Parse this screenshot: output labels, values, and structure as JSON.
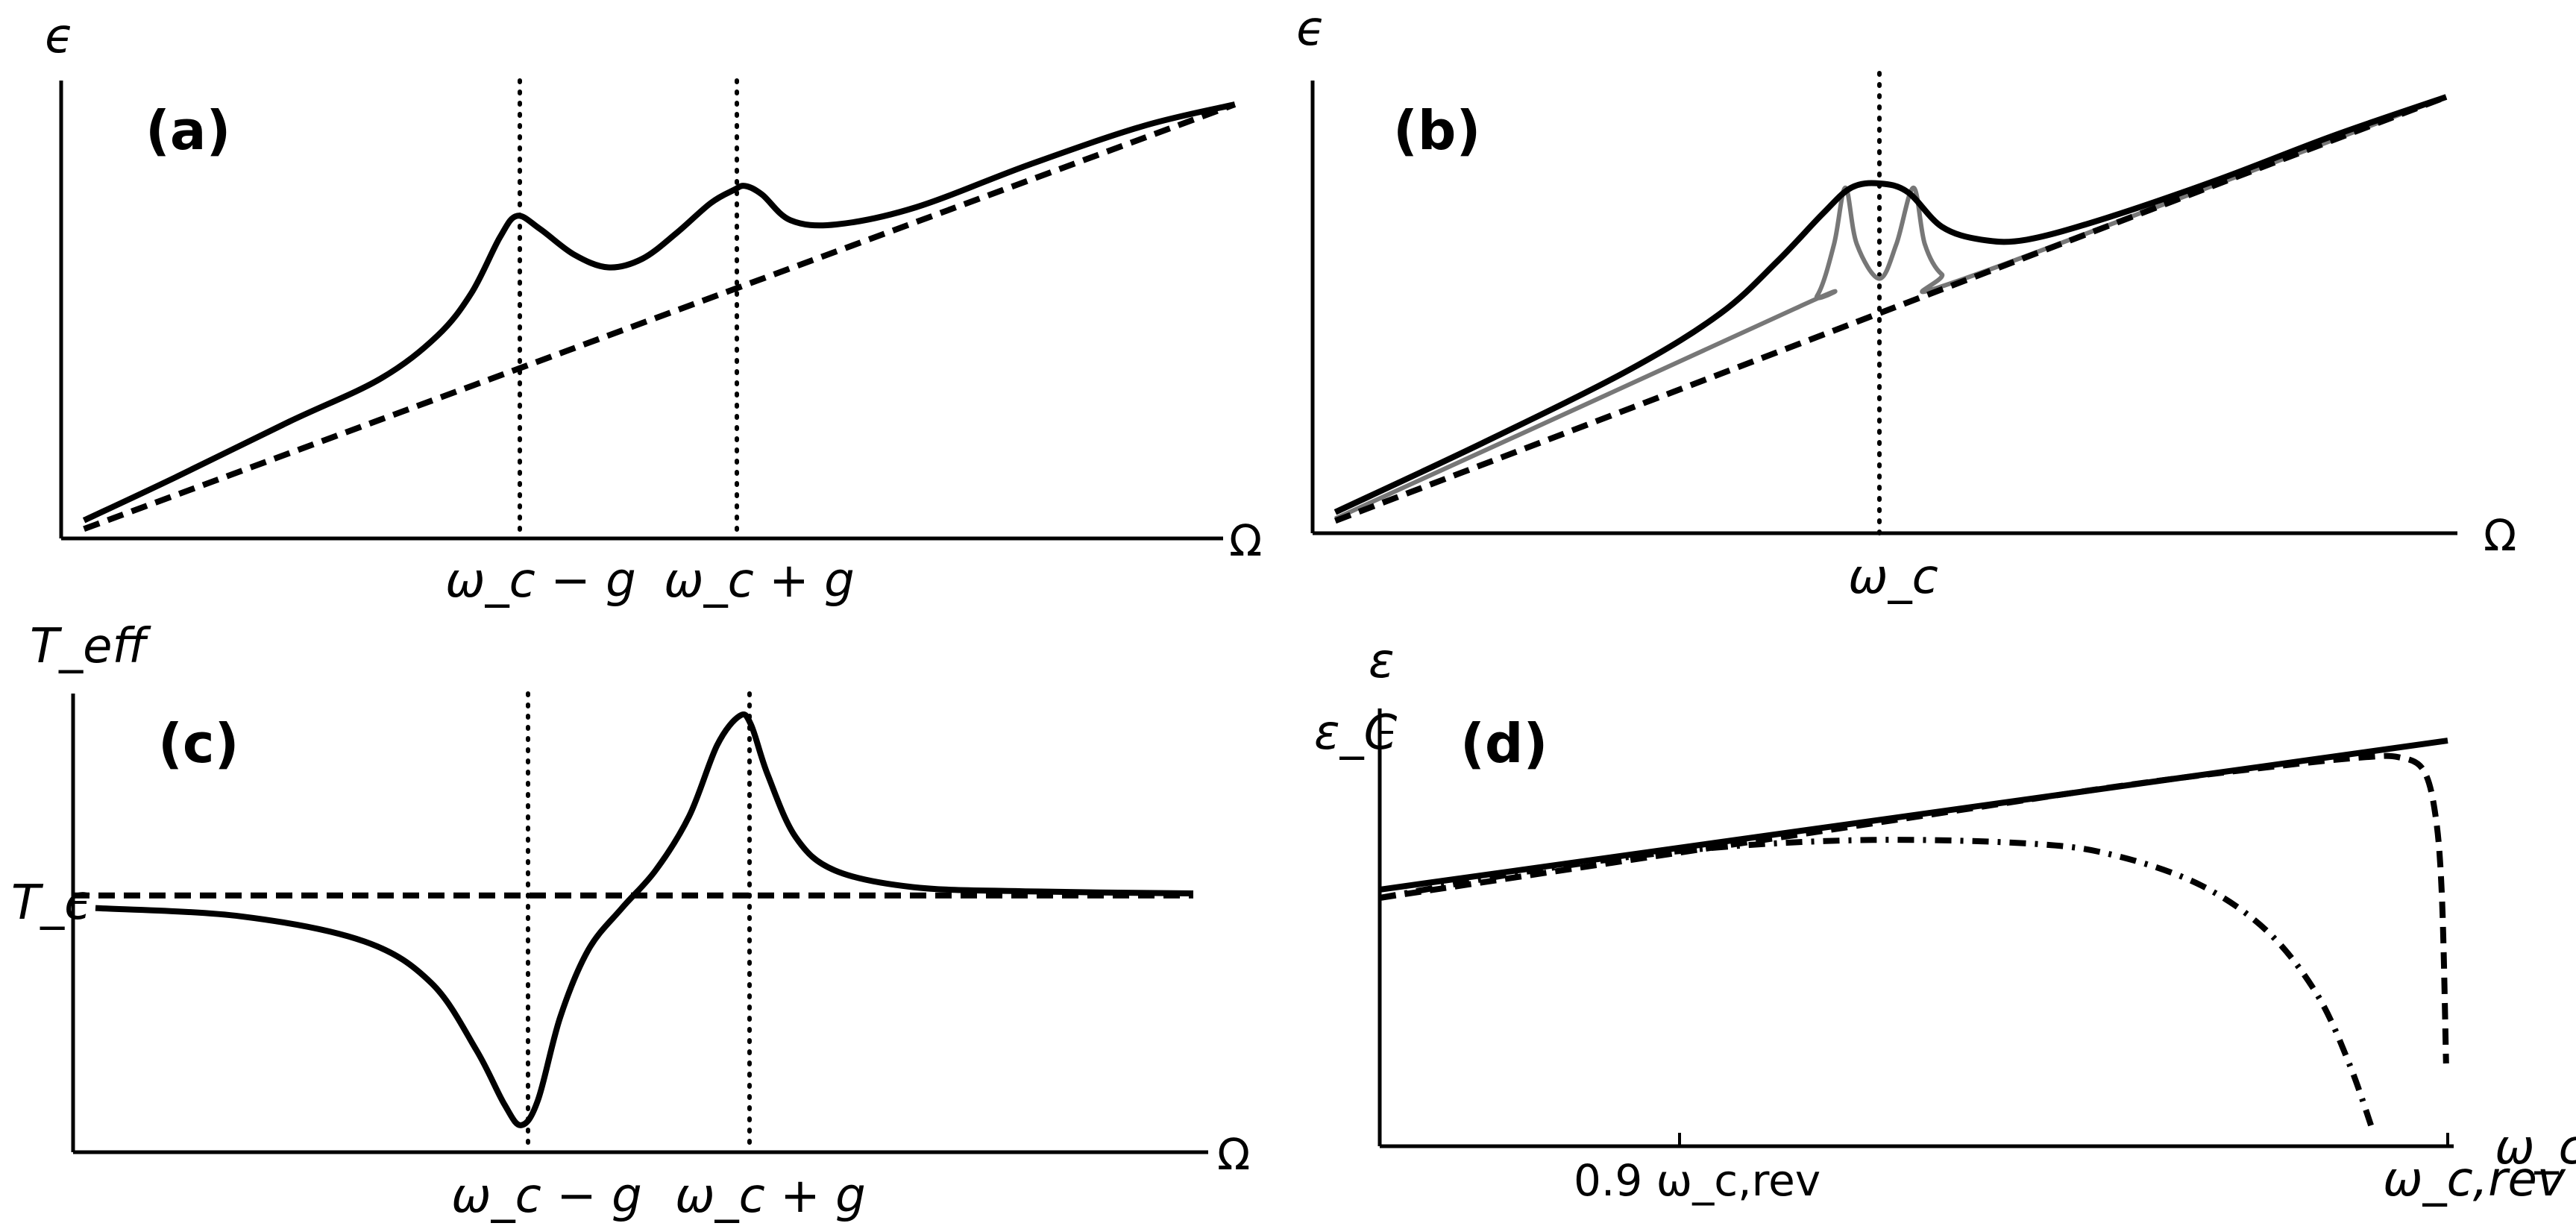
{
  "figure": {
    "omega_symbol": "Ω",
    "panels": {
      "a": {
        "label": "(a)",
        "ylabel": "ϵ",
        "xlabel": "Ω",
        "xticks": [
          "ω_c − g",
          "ω_c + g"
        ],
        "markers": {
          "dotted_x": [
            "ω_c − g",
            "ω_c + g"
          ]
        }
      },
      "b": {
        "label": "(b)",
        "ylabel": "ϵ",
        "xlabel": "Ω",
        "xticks": [
          "ω_c"
        ],
        "markers": {
          "dotted_x": [
            "ω_c"
          ]
        }
      },
      "c": {
        "label": "(c)",
        "ylabel": "T_eff",
        "xlabel": "Ω",
        "xticks": [
          "ω_c − g",
          "ω_c + g"
        ],
        "yticks": [
          "T_c"
        ],
        "markers": {
          "dotted_x": [
            "ω_c − g",
            "ω_c + g"
          ]
        }
      },
      "d": {
        "label": "(d)",
        "ylabel": "ε",
        "xlabel": "ω_c",
        "xticks": [
          "0.9 ω_c,rev",
          "ω_c,rev"
        ],
        "yticks": [
          "ε_C"
        ]
      }
    }
  },
  "chart_data": [
    {
      "panel": "a",
      "type": "line",
      "title": "(a)",
      "xlabel": "Ω",
      "ylabel": "ϵ",
      "xlim": [
        0,
        10
      ],
      "ylim": [
        0,
        10
      ],
      "annotations": [
        {
          "x": 4.0,
          "text": "ω_c − g",
          "style": "dotted-vertical"
        },
        {
          "x": 6.0,
          "text": "ω_c + g",
          "style": "dotted-vertical"
        }
      ],
      "series": [
        {
          "name": "solid",
          "style": "solid-black",
          "x": [
            0.2,
            1.0,
            2.0,
            2.8,
            3.3,
            3.6,
            3.85,
            4.0,
            4.2,
            4.5,
            4.8,
            5.1,
            5.4,
            5.7,
            5.9,
            6.0,
            6.15,
            6.4,
            6.8,
            7.5,
            8.5,
            9.5,
            10.3
          ],
          "values": [
            0.3,
            1.3,
            2.6,
            3.6,
            4.6,
            5.6,
            6.9,
            7.4,
            7.1,
            6.5,
            6.2,
            6.4,
            7.0,
            7.7,
            8.0,
            8.1,
            7.9,
            7.3,
            7.2,
            7.6,
            8.6,
            9.5,
            10.0
          ]
        },
        {
          "name": "dashed",
          "style": "dashed-black",
          "x": [
            0.2,
            10.3
          ],
          "values": [
            0.1,
            10.0
          ]
        }
      ]
    },
    {
      "panel": "b",
      "type": "line",
      "title": "(b)",
      "xlabel": "Ω",
      "ylabel": "ϵ",
      "xlim": [
        0,
        10
      ],
      "ylim": [
        0,
        10
      ],
      "annotations": [
        {
          "x": 5.0,
          "text": "ω_c",
          "style": "dotted-vertical"
        }
      ],
      "series": [
        {
          "name": "solid",
          "style": "solid-black",
          "x": [
            0.2,
            1.5,
            2.8,
            3.6,
            4.1,
            4.5,
            4.75,
            5.0,
            5.25,
            5.55,
            5.9,
            6.3,
            7.0,
            8.0,
            9.0,
            10.0
          ],
          "values": [
            0.4,
            2.0,
            3.7,
            5.0,
            6.2,
            7.3,
            7.9,
            8.0,
            7.8,
            7.0,
            6.7,
            6.7,
            7.2,
            8.1,
            9.1,
            10.0
          ]
        },
        {
          "name": "gray",
          "style": "solid-gray",
          "x": [
            0.2,
            4.25,
            4.45,
            4.6,
            4.7,
            4.8,
            5.0,
            5.15,
            5.3,
            5.4,
            5.55,
            5.75,
            10.0
          ],
          "values": [
            0.25,
            5.1,
            5.4,
            6.6,
            7.9,
            6.6,
            5.8,
            6.6,
            7.9,
            6.6,
            5.9,
            5.8,
            10.0
          ]
        },
        {
          "name": "dashed",
          "style": "dashed-black",
          "x": [
            0.2,
            10.0
          ],
          "values": [
            0.2,
            10.0
          ]
        }
      ]
    },
    {
      "panel": "c",
      "type": "line",
      "title": "(c)",
      "xlabel": "Ω",
      "ylabel": "T_eff",
      "xlim": [
        0,
        10
      ],
      "ylim": [
        0,
        10
      ],
      "yticks": [
        {
          "value": 5.7,
          "label": "T_c"
        }
      ],
      "annotations": [
        {
          "x": 4.0,
          "text": "ω_c − g",
          "style": "dotted-vertical"
        },
        {
          "x": 6.0,
          "text": "ω_c + g",
          "style": "dotted-vertical"
        }
      ],
      "series": [
        {
          "name": "solid",
          "style": "solid-black",
          "x": [
            0.2,
            1.5,
            2.6,
            3.2,
            3.6,
            3.85,
            4.0,
            4.15,
            4.35,
            4.6,
            4.9,
            5.2,
            5.5,
            5.75,
            5.95,
            6.05,
            6.2,
            6.45,
            6.8,
            7.5,
            8.5,
            10.0
          ],
          "values": [
            5.4,
            5.2,
            4.6,
            3.6,
            2.0,
            0.7,
            0.2,
            0.8,
            2.8,
            4.4,
            5.4,
            6.3,
            7.6,
            9.3,
            10.0,
            9.8,
            8.6,
            7.1,
            6.3,
            5.9,
            5.8,
            5.75
          ]
        },
        {
          "name": "dashed",
          "style": "dashed-black",
          "x": [
            0.0,
            10.0
          ],
          "values": [
            5.7,
            5.7
          ]
        }
      ]
    },
    {
      "panel": "d",
      "type": "line",
      "title": "(d)",
      "xlabel": "ω_c",
      "ylabel": "ε",
      "xlim": [
        0.87,
        1.0
      ],
      "ylim": [
        0,
        1.0
      ],
      "xticks": [
        {
          "value": 0.9,
          "label": "0.9 ω_c,rev"
        },
        {
          "value": 1.0,
          "label": "ω_c,rev"
        }
      ],
      "yticks": [
        {
          "value": 0.98,
          "label": "ε_C"
        }
      ],
      "series": [
        {
          "name": "solid",
          "style": "solid-black",
          "x": [
            0.87,
            1.0
          ],
          "values": [
            0.62,
            0.98
          ]
        },
        {
          "name": "dashed",
          "style": "dashed-black",
          "x": [
            0.87,
            0.93,
            0.96,
            0.98,
            0.99,
            0.994,
            0.997,
            0.9985,
            0.9993,
            0.9998
          ],
          "values": [
            0.6,
            0.78,
            0.87,
            0.92,
            0.94,
            0.94,
            0.91,
            0.8,
            0.6,
            0.2
          ]
        },
        {
          "name": "dash-dot",
          "style": "dashdot-black",
          "x": [
            0.87,
            0.89,
            0.91,
            0.93,
            0.95,
            0.96,
            0.97,
            0.978,
            0.984,
            0.988,
            0.991
          ],
          "values": [
            0.6,
            0.67,
            0.72,
            0.74,
            0.73,
            0.7,
            0.63,
            0.52,
            0.37,
            0.2,
            0.03
          ]
        }
      ]
    }
  ]
}
